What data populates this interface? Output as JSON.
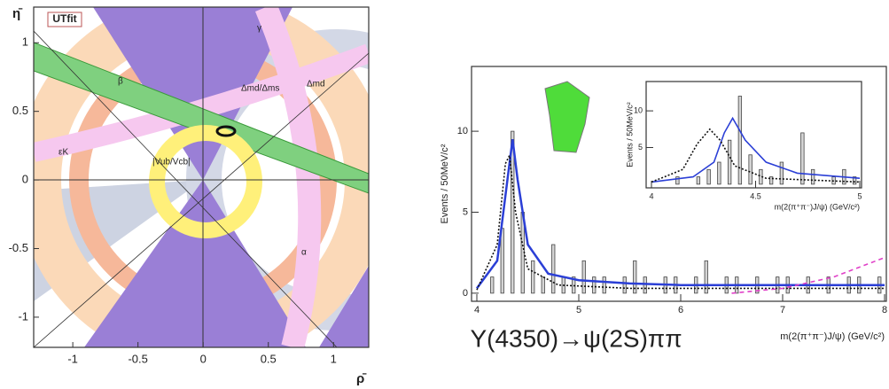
{
  "chart_data": [
    {
      "type": "contour",
      "logo": "UTfit",
      "xlabel": "ρ̄",
      "ylabel": "η̄",
      "xlim": [
        -1.3,
        1.27
      ],
      "ylim": [
        -1.22,
        1.26
      ],
      "xticks": [
        -1,
        -0.5,
        0,
        0.5,
        1
      ],
      "yticks": [
        -1,
        -0.5,
        0,
        0.5,
        1
      ],
      "annotations": [
        "γ",
        "β",
        "εK",
        "Δmd",
        "Δmd/Δms",
        "|Vub/Vcb|",
        "α"
      ]
    },
    {
      "type": "histogram",
      "ylabel": "Events / 50MeV/c²",
      "xlabel": "m(2(π⁺π⁻)J/ψ)  (GeV/c²)",
      "caption": "Y(4350)→ψ(2S)ππ",
      "color": "#444",
      "xlim": [
        4,
        8
      ],
      "ylim": [
        -0.5,
        14
      ],
      "xticks": [
        4,
        5,
        6,
        7,
        8
      ],
      "yticks": [
        0,
        5,
        10
      ],
      "bins": [
        4.0,
        4.1,
        4.2,
        4.3,
        4.4,
        4.5,
        4.6,
        4.7,
        4.8,
        4.9,
        5.0,
        5.1,
        5.2,
        5.3,
        5.4,
        5.5,
        5.6,
        5.7,
        5.8,
        5.9,
        6.0,
        6.1,
        6.2,
        6.3,
        6.4,
        6.5,
        6.6,
        6.7,
        6.8,
        6.9,
        7.0,
        7.1,
        7.2,
        7.3,
        7.4,
        7.5,
        7.6,
        7.7,
        7.8,
        7.9,
        8.0
      ],
      "values": [
        0,
        1,
        4,
        10,
        5,
        2,
        1,
        3,
        1,
        1,
        2,
        1,
        1,
        0,
        1,
        2,
        1,
        0,
        1,
        1,
        0,
        1,
        2,
        0,
        1,
        1,
        0,
        1,
        0,
        1,
        1,
        0,
        1,
        0,
        1,
        0,
        1,
        1,
        0,
        1
      ],
      "curves": [
        {
          "color": "#2b3fd6",
          "dash": "none",
          "x": [
            4.0,
            4.2,
            4.3,
            4.35,
            4.4,
            4.5,
            4.7,
            5,
            5.5,
            6,
            7,
            8
          ],
          "values": [
            0.3,
            2,
            7,
            9.5,
            7,
            3,
            1.2,
            0.8,
            0.6,
            0.5,
            0.5,
            0.5
          ]
        },
        {
          "color": "#111111",
          "dash": "2 2",
          "x": [
            4,
            4.2,
            4.28,
            4.32,
            4.38,
            4.5,
            4.8,
            5.5,
            8
          ],
          "values": [
            0.2,
            3,
            8,
            8.5,
            5,
            1.5,
            0.5,
            0.3,
            0.3
          ]
        },
        {
          "color": "#e040c8",
          "dash": "5 4",
          "x": [
            6.5,
            7,
            7.5,
            8
          ],
          "values": [
            0,
            0.3,
            1,
            2.2
          ]
        }
      ]
    },
    {
      "type": "histogram",
      "ylabel": "Events / 50MeV/c²",
      "xlabel": "m(2(π⁺π⁻)J/ψ)  (GeV/c²)",
      "color": "#444",
      "xlim": [
        4,
        5
      ],
      "ylim": [
        -0.5,
        14
      ],
      "xticks": [
        4,
        4.5,
        5
      ],
      "yticks": [
        5,
        10
      ],
      "bins": [
        4.0,
        4.05,
        4.1,
        4.15,
        4.2,
        4.25,
        4.3,
        4.35,
        4.4,
        4.45,
        4.5,
        4.55,
        4.6,
        4.65,
        4.7,
        4.75,
        4.8,
        4.85,
        4.9,
        4.95,
        5.0
      ],
      "values": [
        0,
        0,
        1,
        0,
        1,
        2,
        3,
        6,
        12,
        4,
        2,
        1,
        3,
        0,
        7,
        2,
        0,
        1,
        2,
        1
      ],
      "curves": [
        {
          "color": "#2b3fd6",
          "dash": "none",
          "x": [
            4,
            4.2,
            4.3,
            4.35,
            4.39,
            4.45,
            4.55,
            4.7,
            5
          ],
          "values": [
            0.3,
            1,
            3,
            7,
            9,
            6,
            3,
            1.5,
            0.8
          ]
        },
        {
          "color": "#111111",
          "dash": "2 2",
          "x": [
            4,
            4.15,
            4.22,
            4.28,
            4.33,
            4.4,
            4.55,
            5
          ],
          "values": [
            0.3,
            2,
            5.5,
            7.5,
            6,
            2.5,
            0.8,
            0.3
          ]
        }
      ]
    }
  ]
}
